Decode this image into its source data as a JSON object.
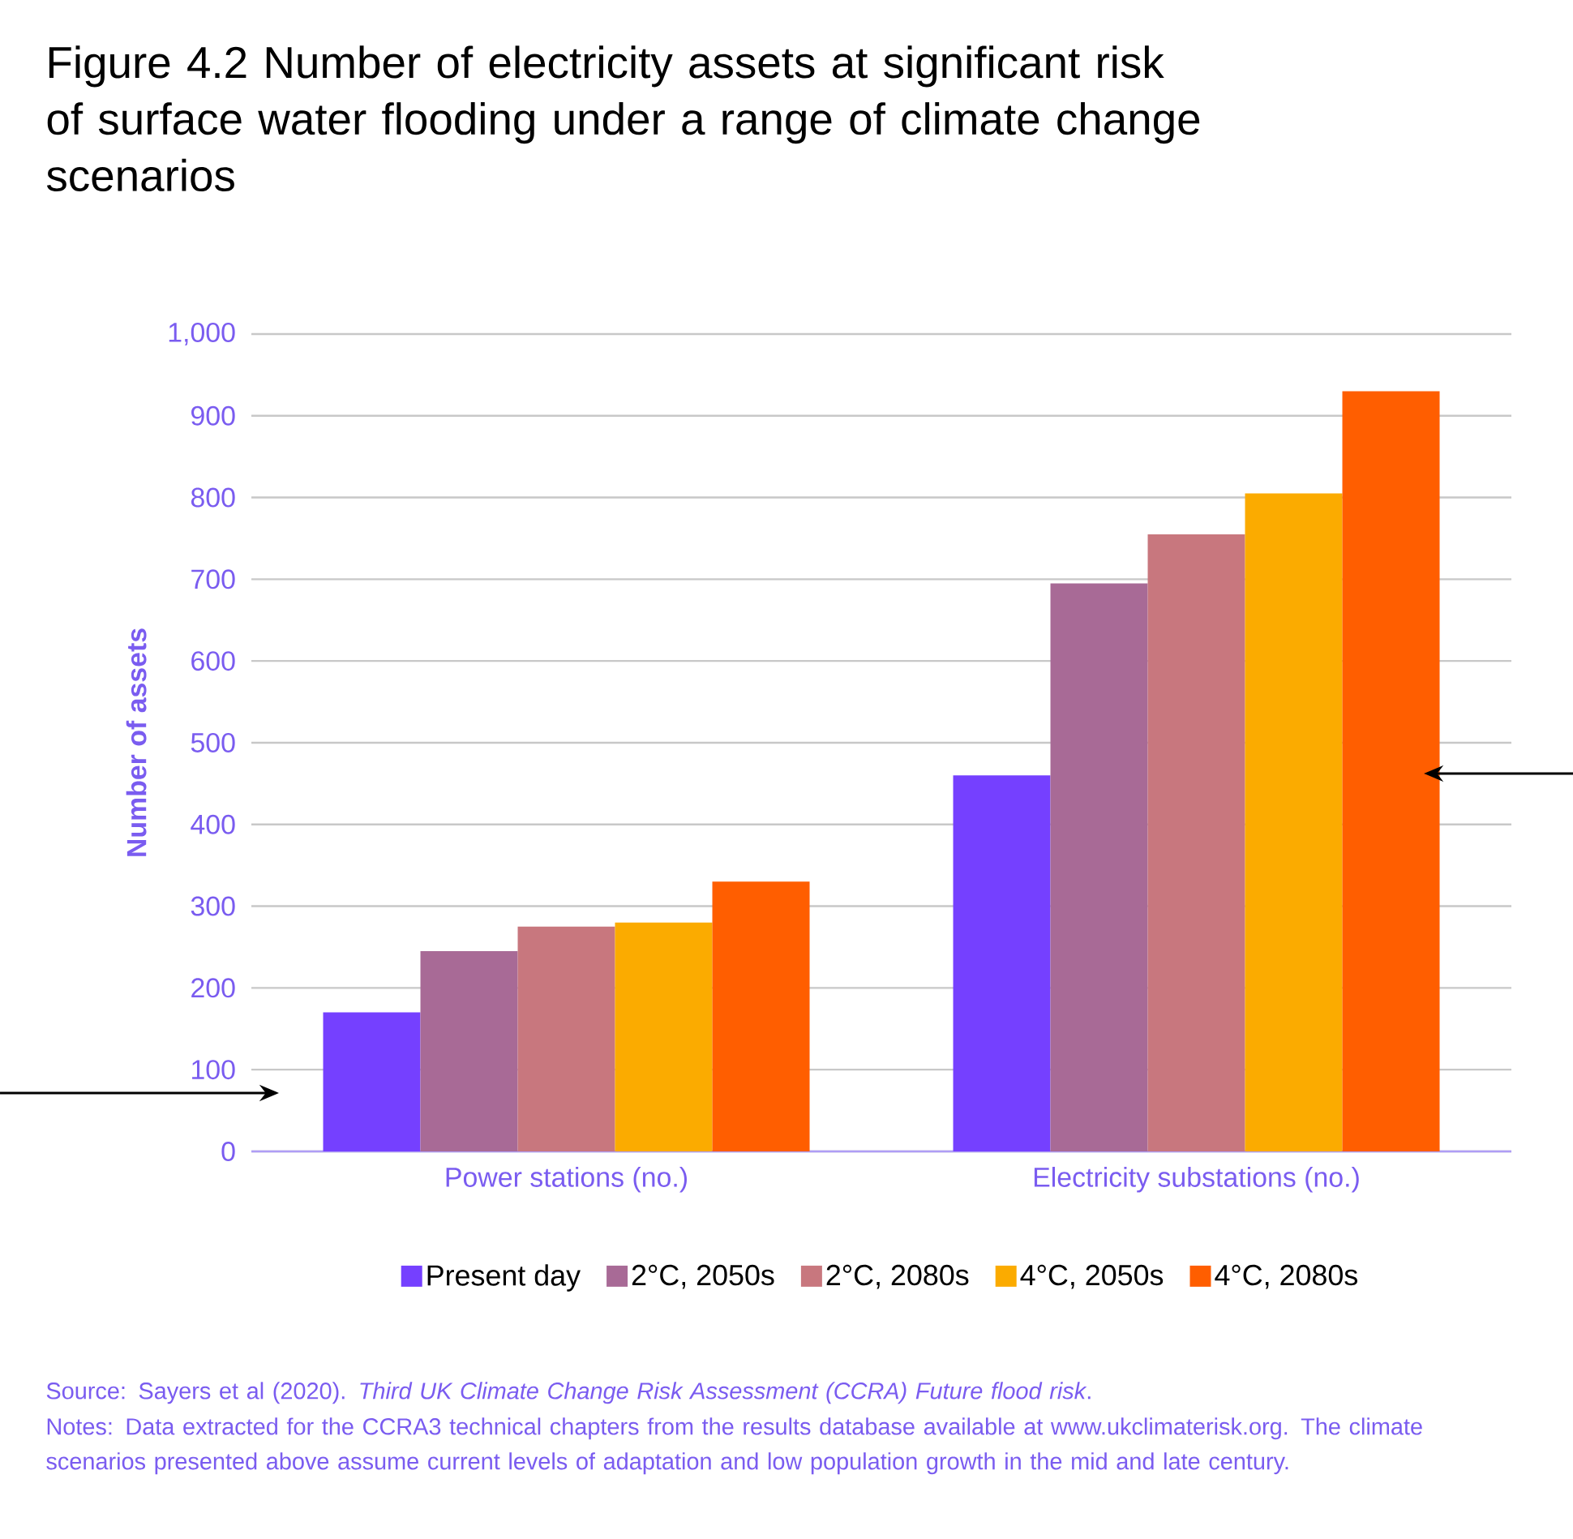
{
  "chart_data": {
    "type": "bar",
    "title": "Figure 4.2 Number of electricity assets at significant risk of surface water flooding under a range of climate change scenarios",
    "ylabel": "Number of assets",
    "categories": [
      "Power stations (no.)",
      "Electricity substations (no.)"
    ],
    "series": [
      {
        "name": "Present day",
        "color": "#7540ff",
        "values": [
          170,
          460
        ]
      },
      {
        "name": "2°C, 2050s",
        "color": "#a86a96",
        "values": [
          245,
          695
        ]
      },
      {
        "name": "2°C, 2080s",
        "color": "#c8777e",
        "values": [
          275,
          755
        ]
      },
      {
        "name": "4°C, 2050s",
        "color": "#fbab00",
        "values": [
          280,
          805
        ]
      },
      {
        "name": "4°C, 2080s",
        "color": "#ff5e00",
        "values": [
          330,
          930
        ]
      }
    ],
    "ylim": [
      0,
      1000
    ],
    "yticks": [
      0,
      100,
      200,
      300,
      400,
      500,
      600,
      700,
      800,
      900,
      {
        "value": 1000,
        "label": "1,000"
      }
    ],
    "grid": "y",
    "legend": "bottom",
    "annotations": [
      "Source: Sayers et al (2020). *Third UK Climate Change Risk Assessment (CCRA) Future flood risk*.",
      "Notes: Data extracted for the CCRA3 technical chapters from the results database available at www.ukclimaterisk.org. The climate scenarios presented above assume current levels of adaptation and low population growth in the mid and late century."
    ]
  }
}
